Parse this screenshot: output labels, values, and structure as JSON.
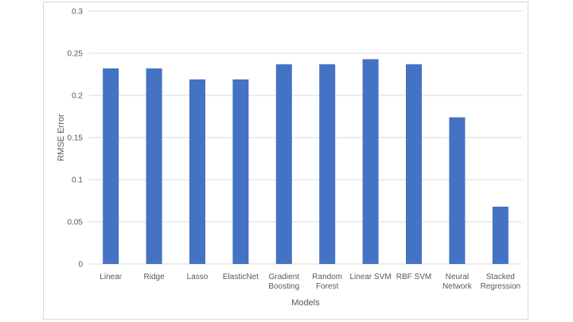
{
  "chart_data": {
    "type": "bar",
    "title": "",
    "xlabel": "Models",
    "ylabel": "RMSE Error",
    "ylim": [
      0,
      0.3
    ],
    "yticks": [
      "0",
      "0.05",
      "0.1",
      "0.15",
      "0.2",
      "0.25",
      "0.3"
    ],
    "grid": true,
    "categories": [
      [
        "Linear"
      ],
      [
        "Ridge"
      ],
      [
        "Lasso"
      ],
      [
        "ElasticNet"
      ],
      [
        "Gradient",
        "Boosting"
      ],
      [
        "Random",
        "Forest"
      ],
      [
        "Linear SVM"
      ],
      [
        "RBF SVM"
      ],
      [
        "Neural",
        "Network"
      ],
      [
        "Stacked",
        "Regression"
      ]
    ],
    "values": [
      0.232,
      0.232,
      0.219,
      0.219,
      0.237,
      0.237,
      0.243,
      0.237,
      0.174,
      0.068
    ],
    "bar_color": "#4472c4",
    "grid_color": "#d9d9d9"
  }
}
